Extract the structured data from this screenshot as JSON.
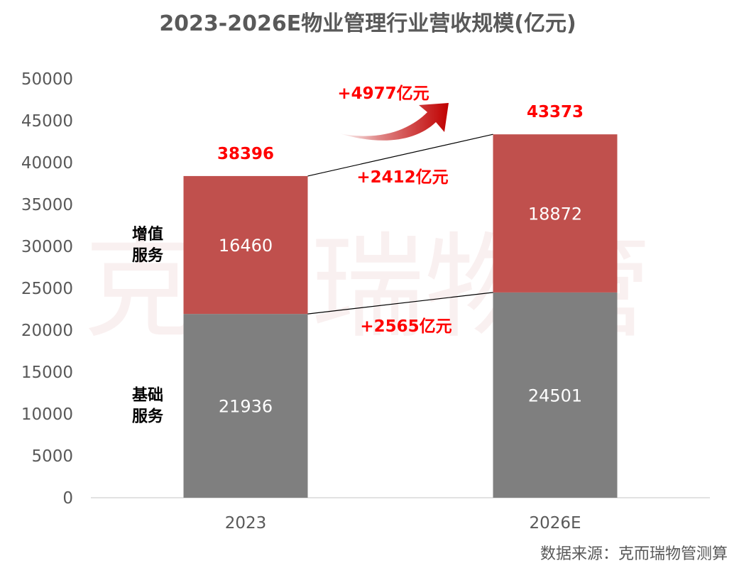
{
  "chart_data": {
    "type": "bar",
    "stacked": true,
    "title": "2023-2026E物业管理行业营收规模(亿元)",
    "categories": [
      "2023",
      "2026E"
    ],
    "ylim": [
      0,
      50000
    ],
    "yticks": [
      0,
      5000,
      10000,
      15000,
      20000,
      25000,
      30000,
      35000,
      40000,
      45000,
      50000
    ],
    "grid": false,
    "series": [
      {
        "name": "基础服务",
        "values": [
          21936,
          24501
        ],
        "color": "#7f7f7f"
      },
      {
        "name": "增值服务",
        "values": [
          16460,
          18872
        ],
        "color": "#c0504d"
      }
    ],
    "totals": [
      38396,
      43373
    ],
    "annotations": {
      "total_growth": "+4977亿元",
      "value_added_growth": "+2412亿元",
      "basic_growth": "+2565亿元"
    },
    "colors": {
      "total_label": "#ff0000",
      "arrow": "#c00000"
    }
  },
  "watermark": "克而瑞物管",
  "source": "数据来源：克而瑞物管测算"
}
